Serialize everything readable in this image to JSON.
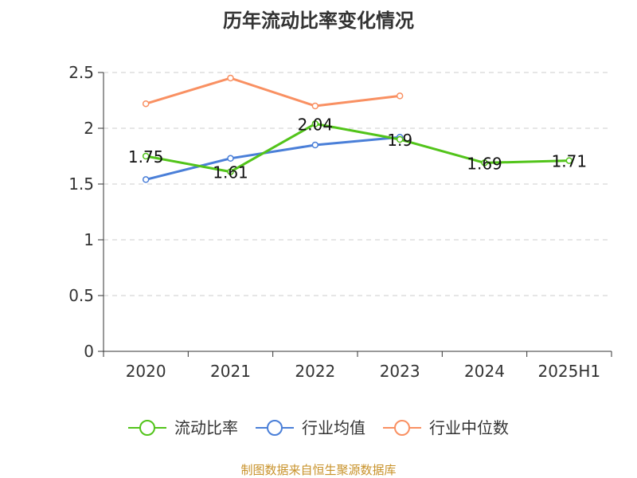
{
  "chart_data": {
    "type": "line",
    "title": "历年流动比率变化情况",
    "categories": [
      "2020",
      "2021",
      "2022",
      "2023",
      "2024",
      "2025H1"
    ],
    "ylim": [
      0,
      2.5
    ],
    "yticks": [
      "0",
      "0.5",
      "1",
      "1.5",
      "2",
      "2.5"
    ],
    "grid": true,
    "legend_position": "bottom",
    "series": [
      {
        "name": "流动比率",
        "color": "#52c41a",
        "values": [
          1.75,
          1.61,
          2.04,
          1.9,
          1.69,
          1.71
        ],
        "labels": [
          "1.75",
          "1.61",
          "2.04",
          "1.9",
          "1.69",
          "1.71"
        ]
      },
      {
        "name": "行业均值",
        "color": "#4a7fd8",
        "values": [
          1.54,
          1.73,
          1.85,
          1.92,
          null,
          null
        ]
      },
      {
        "name": "行业中位数",
        "color": "#f99062",
        "values": [
          2.22,
          2.45,
          2.2,
          2.29,
          null,
          null
        ]
      }
    ]
  },
  "source": {
    "text": "制图数据来自恒生聚源数据库",
    "color": "#c8922a"
  }
}
